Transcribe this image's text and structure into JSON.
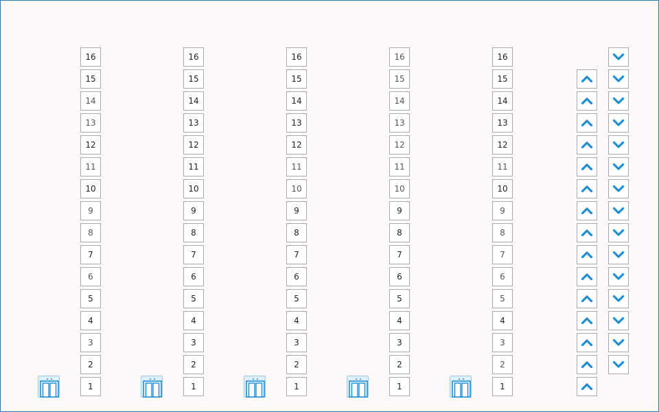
{
  "floors": [
    "16",
    "15",
    "14",
    "13",
    "12",
    "11",
    "10",
    "9",
    "8",
    "7",
    "6",
    "5",
    "4",
    "3",
    "2",
    "1"
  ],
  "elevators": [
    {
      "name": "elevator-1",
      "current_floor": "1"
    },
    {
      "name": "elevator-2",
      "current_floor": "1"
    },
    {
      "name": "elevator-3",
      "current_floor": "1"
    },
    {
      "name": "elevator-4",
      "current_floor": "1"
    },
    {
      "name": "elevator-5",
      "current_floor": "1"
    }
  ],
  "call_buttons": {
    "up_floors": [
      "15",
      "14",
      "13",
      "12",
      "11",
      "10",
      "9",
      "8",
      "7",
      "6",
      "5",
      "4",
      "3",
      "2",
      "1"
    ],
    "down_floors": [
      "16",
      "15",
      "14",
      "13",
      "12",
      "11",
      "10",
      "9",
      "8",
      "7",
      "6",
      "5",
      "4",
      "3",
      "2"
    ],
    "up_icon": "chevron-up-icon",
    "down_icon": "chevron-down-icon"
  },
  "colors": {
    "accent": "#1e8fd6",
    "elevator_fill": "#dff0fb",
    "background": "#fdf9f9",
    "border": "#2a78b8"
  }
}
